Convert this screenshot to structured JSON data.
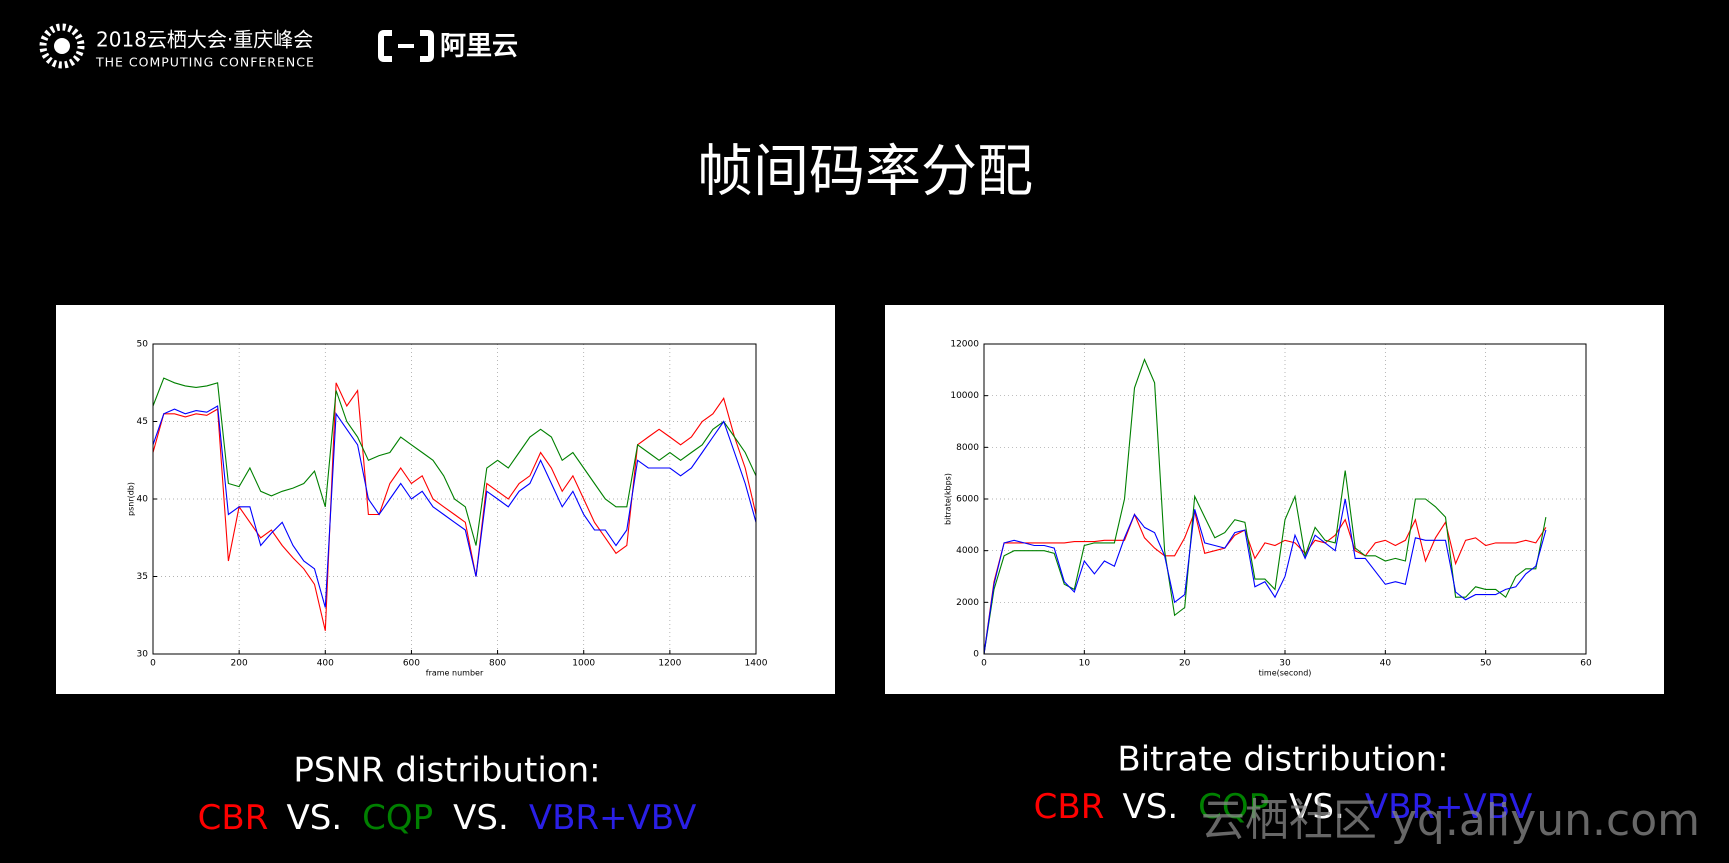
{
  "header": {
    "event": "2018云栖大会·重庆峰会",
    "event_sub": "THE COMPUTING CONFERENCE",
    "brand": "阿里云"
  },
  "title": "帧间码率分配",
  "watermark": "云栖社区 yq.aliyun.com",
  "captions": [
    {
      "title": "PSNR distribution:",
      "parts": [
        {
          "text": "CBR",
          "color": "#ff0000"
        },
        {
          "text": "VS.",
          "color": "#ffffff"
        },
        {
          "text": "CQP",
          "color": "#008000"
        },
        {
          "text": "VS.",
          "color": "#ffffff"
        },
        {
          "text": "VBR+VBV",
          "color": "#2a1fe6"
        }
      ]
    },
    {
      "title": "Bitrate distribution:",
      "parts": [
        {
          "text": "CBR",
          "color": "#ff0000"
        },
        {
          "text": "VS.",
          "color": "#ffffff"
        },
        {
          "text": "CQP",
          "color": "#008000"
        },
        {
          "text": "VS.",
          "color": "#ffffff"
        },
        {
          "text": "VBR+VBV",
          "color": "#2a1fe6"
        }
      ]
    }
  ],
  "chart_data": [
    {
      "type": "line",
      "xlabel": "frame number",
      "ylabel": "psnr(db)",
      "grid": true,
      "xlim": [
        0,
        1400
      ],
      "ylim": [
        30,
        50
      ],
      "xticks": [
        0,
        200,
        400,
        600,
        800,
        1000,
        1200,
        1400
      ],
      "yticks": [
        30,
        35,
        40,
        45,
        50
      ],
      "x": [
        0,
        25,
        50,
        75,
        100,
        125,
        150,
        175,
        200,
        225,
        250,
        275,
        300,
        325,
        350,
        375,
        400,
        425,
        450,
        475,
        500,
        525,
        550,
        575,
        600,
        625,
        650,
        675,
        700,
        725,
        750,
        775,
        800,
        825,
        850,
        875,
        900,
        925,
        950,
        975,
        1000,
        1025,
        1050,
        1075,
        1100,
        1125,
        1150,
        1175,
        1200,
        1225,
        1250,
        1275,
        1300,
        1325,
        1350,
        1375,
        1400
      ],
      "series": [
        {
          "name": "CBR",
          "color": "#ff0000",
          "values": [
            43,
            45.5,
            45.5,
            45.3,
            45.5,
            45.4,
            45.8,
            36,
            39.5,
            38.5,
            37.5,
            38,
            37,
            36.2,
            35.5,
            34.5,
            31.5,
            47.5,
            46,
            47,
            39,
            39,
            41,
            42,
            41,
            41.5,
            40,
            39.5,
            39,
            38.5,
            35,
            41,
            40.5,
            40,
            41,
            41.5,
            43,
            42,
            40.5,
            41.5,
            40,
            38.5,
            37.5,
            36.5,
            37,
            43.5,
            44,
            44.5,
            44,
            43.5,
            44,
            45,
            45.5,
            46.5,
            44,
            42,
            39
          ]
        },
        {
          "name": "CQP",
          "color": "#008000",
          "values": [
            46,
            47.8,
            47.5,
            47.3,
            47.2,
            47.3,
            47.5,
            41,
            40.8,
            42,
            40.5,
            40.2,
            40.5,
            40.7,
            41,
            41.8,
            39.5,
            47,
            45,
            44,
            42.5,
            42.8,
            43,
            44,
            43.5,
            43,
            42.5,
            41.5,
            40,
            39.5,
            37,
            42,
            42.5,
            42,
            43,
            44,
            44.5,
            44,
            42.5,
            43,
            42,
            41,
            40,
            39.5,
            39.5,
            43.5,
            43,
            42.5,
            43,
            42.5,
            43,
            43.5,
            44.5,
            45,
            44,
            43,
            41.5
          ]
        },
        {
          "name": "VBR+VBV",
          "color": "#0000ff",
          "values": [
            43.5,
            45.5,
            45.8,
            45.5,
            45.7,
            45.6,
            46,
            39,
            39.5,
            39.5,
            37,
            37.8,
            38.5,
            37,
            36,
            35.5,
            33,
            45.5,
            44.5,
            43.5,
            40,
            39,
            40,
            41,
            40,
            40.5,
            39.5,
            39,
            38.5,
            38,
            35,
            40.5,
            40,
            39.5,
            40.5,
            41,
            42.5,
            41,
            39.5,
            40.5,
            39,
            38,
            38,
            37,
            38,
            42.5,
            42,
            42,
            42,
            41.5,
            42,
            43,
            44,
            45,
            43,
            41,
            38.5
          ]
        }
      ]
    },
    {
      "type": "line",
      "xlabel": "time(second)",
      "ylabel": "bitrate(kbps)",
      "grid": true,
      "xlim": [
        0,
        60
      ],
      "ylim": [
        0,
        12000
      ],
      "xticks": [
        0,
        10,
        20,
        30,
        40,
        50,
        60
      ],
      "yticks": [
        0,
        2000,
        4000,
        6000,
        8000,
        10000,
        12000
      ],
      "x": [
        0,
        1,
        2,
        3,
        4,
        5,
        6,
        7,
        8,
        9,
        10,
        11,
        12,
        13,
        14,
        15,
        16,
        17,
        18,
        19,
        20,
        21,
        22,
        23,
        24,
        25,
        26,
        27,
        28,
        29,
        30,
        31,
        32,
        33,
        34,
        35,
        36,
        37,
        38,
        39,
        40,
        41,
        42,
        43,
        44,
        45,
        46,
        47,
        48,
        49,
        50,
        51,
        52,
        53,
        54,
        55,
        56
      ],
      "series": [
        {
          "name": "CBR",
          "color": "#ff0000",
          "values": [
            0,
            2800,
            4300,
            4300,
            4300,
            4300,
            4300,
            4300,
            4300,
            4350,
            4350,
            4350,
            4400,
            4400,
            4400,
            5400,
            4500,
            4100,
            3800,
            3800,
            4500,
            5500,
            3900,
            4000,
            4100,
            4600,
            4800,
            3700,
            4300,
            4200,
            4400,
            4300,
            3900,
            4400,
            4300,
            4600,
            5200,
            4000,
            3800,
            4300,
            4400,
            4200,
            4400,
            5200,
            3600,
            4500,
            5100,
            3500,
            4400,
            4500,
            4200,
            4300,
            4300,
            4300,
            4400,
            4300,
            4900
          ]
        },
        {
          "name": "CQP",
          "color": "#008000",
          "values": [
            0,
            2500,
            3800,
            4000,
            4000,
            4000,
            4000,
            3900,
            2700,
            2500,
            4200,
            4300,
            4300,
            4300,
            6000,
            10300,
            11400,
            10500,
            4000,
            1500,
            1800,
            6100,
            5300,
            4500,
            4700,
            5200,
            5100,
            2900,
            2900,
            2500,
            5200,
            6100,
            3800,
            4900,
            4400,
            4300,
            7100,
            4100,
            3800,
            3800,
            3600,
            3700,
            3600,
            6000,
            6000,
            5700,
            5300,
            2200,
            2200,
            2600,
            2500,
            2500,
            2200,
            3000,
            3300,
            3300,
            5300
          ]
        },
        {
          "name": "VBR+VBV",
          "color": "#0000ff",
          "values": [
            0,
            2700,
            4300,
            4400,
            4300,
            4200,
            4200,
            4100,
            2800,
            2400,
            3600,
            3100,
            3600,
            3400,
            4500,
            5400,
            4900,
            4700,
            3800,
            2000,
            2300,
            5600,
            4300,
            4200,
            4100,
            4700,
            4800,
            2600,
            2800,
            2200,
            3000,
            4600,
            3700,
            4600,
            4300,
            4000,
            6000,
            3700,
            3700,
            3200,
            2700,
            2800,
            2700,
            4500,
            4400,
            4400,
            4400,
            2400,
            2100,
            2300,
            2300,
            2300,
            2500,
            2600,
            3100,
            3400,
            4800
          ]
        }
      ]
    }
  ]
}
